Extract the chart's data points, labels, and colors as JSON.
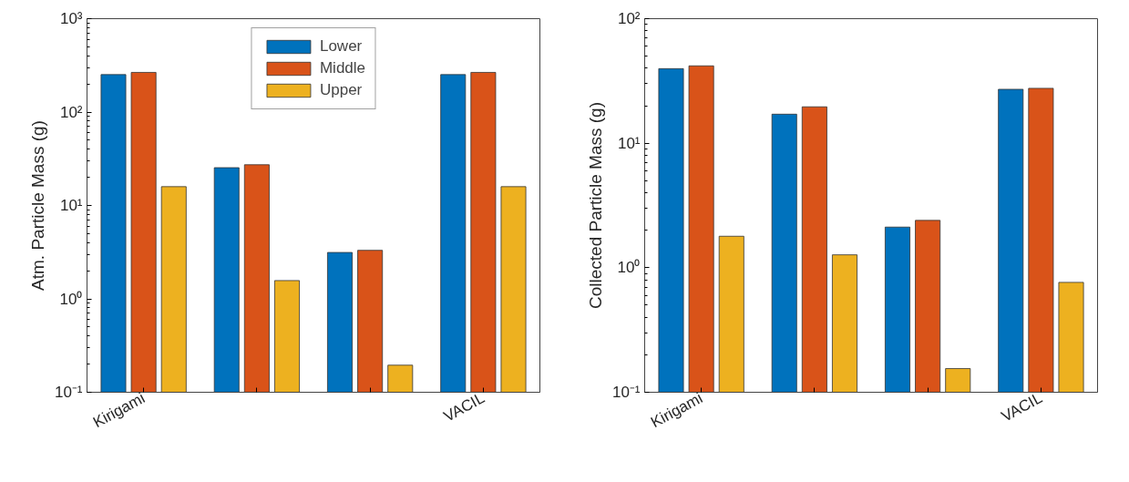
{
  "chart_data": [
    {
      "type": "bar",
      "ylabel": "Atm. Particle Mass (g)",
      "categories": [
        "Kirigami",
        null,
        null,
        "VACIL"
      ],
      "log": true,
      "ylim": [
        0.1,
        1000
      ],
      "yticks": [
        {
          "value": 0.1,
          "label": "10⁻¹"
        },
        {
          "value": 1,
          "label": "10⁰"
        },
        {
          "value": 10,
          "label": "10¹"
        },
        {
          "value": 100,
          "label": "10²"
        },
        {
          "value": 1000,
          "label": "10³"
        }
      ],
      "grid": false,
      "legend": "top",
      "series": [
        {
          "name": "Lower",
          "color": "#0072bd",
          "values": [
            252,
            25.4,
            3.14,
            252
          ]
        },
        {
          "name": "Middle",
          "color": "#d95319",
          "values": [
            266,
            27.3,
            3.31,
            266
          ]
        },
        {
          "name": "Upper",
          "color": "#edb120",
          "values": [
            15.9,
            1.57,
            0.195,
            15.9
          ]
        }
      ]
    },
    {
      "type": "bar",
      "ylabel": "Collected Particle Mass (g)",
      "categories": [
        "Kirigami",
        null,
        null,
        "VACIL"
      ],
      "log": true,
      "ylim": [
        0.1,
        100
      ],
      "yticks": [
        {
          "value": 0.1,
          "label": "10⁻¹"
        },
        {
          "value": 1,
          "label": "10⁰"
        },
        {
          "value": 10,
          "label": "10¹"
        },
        {
          "value": 100,
          "label": "10²"
        }
      ],
      "grid": false,
      "legend": false,
      "series": [
        {
          "color": "#0072bd",
          "values": [
            39.7,
            17.1,
            2.12,
            27.1
          ]
        },
        {
          "color": "#d95319",
          "values": [
            41.8,
            19.6,
            2.4,
            27.6
          ]
        },
        {
          "color": "#edb120",
          "values": [
            1.79,
            1.27,
            0.155,
            0.763
          ]
        }
      ]
    }
  ]
}
